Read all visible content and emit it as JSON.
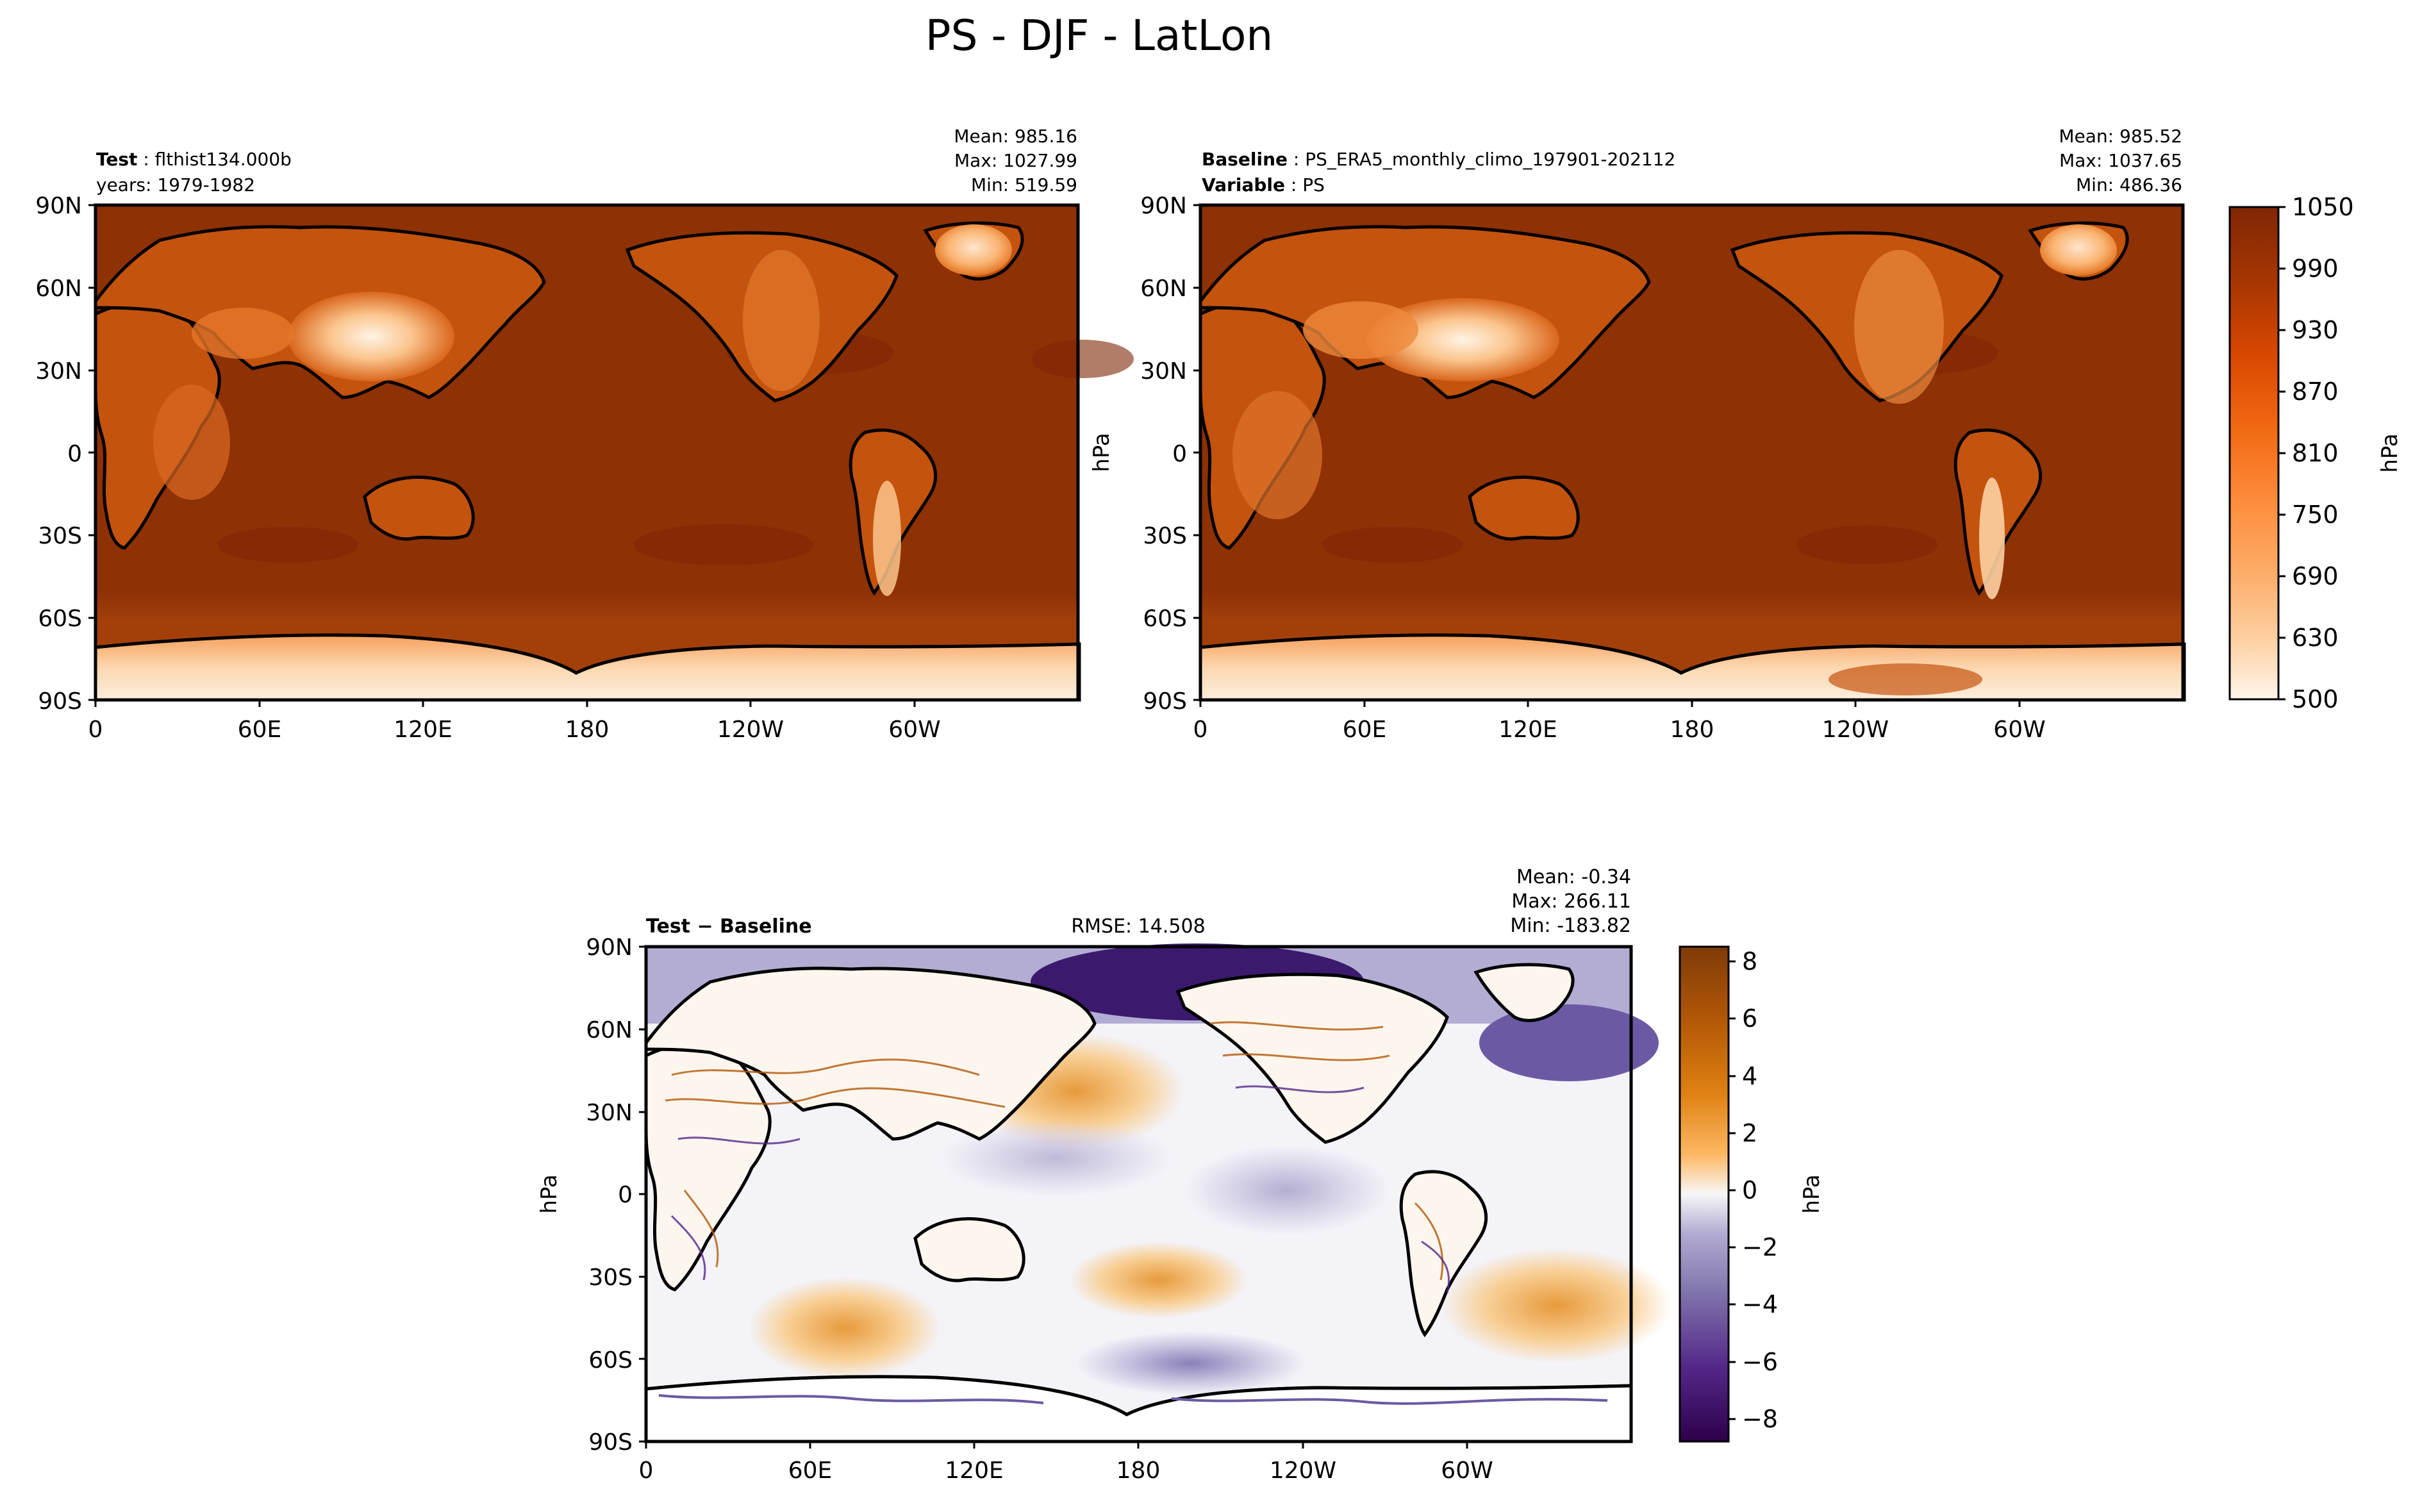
{
  "figure": {
    "title": "PS - DJF - LatLon"
  },
  "panels": {
    "test": {
      "label_bold": "Test",
      "label_text": "flthist134.000b",
      "line2": "years: 1979-1982",
      "stats": {
        "mean": "Mean: 985.16",
        "max": "Max: 1027.99",
        "min": "Min: 519.59"
      }
    },
    "baseline": {
      "label_bold": "Baseline",
      "label_text": "PS_ERA5_monthly_climo_197901-202112",
      "line2_bold": "Variable",
      "line2_text": "PS",
      "stats": {
        "mean": "Mean: 985.52",
        "max": "Max: 1037.65",
        "min": "Min: 486.36"
      }
    },
    "diff": {
      "label": "Test − Baseline",
      "rmse": "RMSE: 14.508",
      "stats": {
        "mean": "Mean: -0.34",
        "max": "Max: 266.11",
        "min": "Min: -183.82"
      }
    }
  },
  "colorbars": {
    "top": {
      "unit": "hPa",
      "ticks": [
        "1050",
        "990",
        "930",
        "870",
        "810",
        "750",
        "690",
        "630",
        "500"
      ]
    },
    "diff": {
      "unit": "hPa",
      "ticks": [
        "8",
        "6",
        "4",
        "2",
        "0",
        "−2",
        "−4",
        "−6",
        "−8"
      ]
    }
  },
  "chart_data": [
    {
      "type": "heatmap",
      "title": "Test: flthist134.000b",
      "xlabel": "",
      "ylabel": "",
      "x_ticks": [
        "0",
        "60E",
        "120E",
        "180",
        "120W",
        "60W"
      ],
      "y_ticks": [
        "90N",
        "60N",
        "30N",
        "0",
        "30S",
        "60S",
        "90S"
      ],
      "xlim": [
        0,
        360
      ],
      "ylim": [
        -90,
        90
      ],
      "colorscale": {
        "min": 500,
        "max": 1050,
        "unit": "hPa",
        "cmap": "Oranges"
      },
      "stats": {
        "mean": 985.16,
        "max": 1027.99,
        "min": 519.59
      }
    },
    {
      "type": "heatmap",
      "title": "Baseline: PS_ERA5_monthly_climo_197901-202112",
      "xlabel": "",
      "ylabel": "hPa",
      "x_ticks": [
        "0",
        "60E",
        "120E",
        "180",
        "120W",
        "60W"
      ],
      "y_ticks": [
        "90N",
        "60N",
        "30N",
        "0",
        "30S",
        "60S",
        "90S"
      ],
      "xlim": [
        0,
        360
      ],
      "ylim": [
        -90,
        90
      ],
      "colorscale": {
        "min": 500,
        "max": 1050,
        "unit": "hPa",
        "cmap": "Oranges"
      },
      "stats": {
        "mean": 985.52,
        "max": 1037.65,
        "min": 486.36
      }
    },
    {
      "type": "heatmap",
      "title": "Test − Baseline",
      "xlabel": "",
      "ylabel": "hPa",
      "x_ticks": [
        "0",
        "60E",
        "120E",
        "180",
        "120W",
        "60W"
      ],
      "y_ticks": [
        "90N",
        "60N",
        "30N",
        "0",
        "30S",
        "60S",
        "90S"
      ],
      "xlim": [
        0,
        360
      ],
      "ylim": [
        -90,
        90
      ],
      "colorscale": {
        "min": -9,
        "max": 9,
        "unit": "hPa",
        "cmap": "PuOr_r"
      },
      "stats": {
        "mean": -0.34,
        "max": 266.11,
        "min": -183.82,
        "rmse": 14.508
      }
    }
  ]
}
